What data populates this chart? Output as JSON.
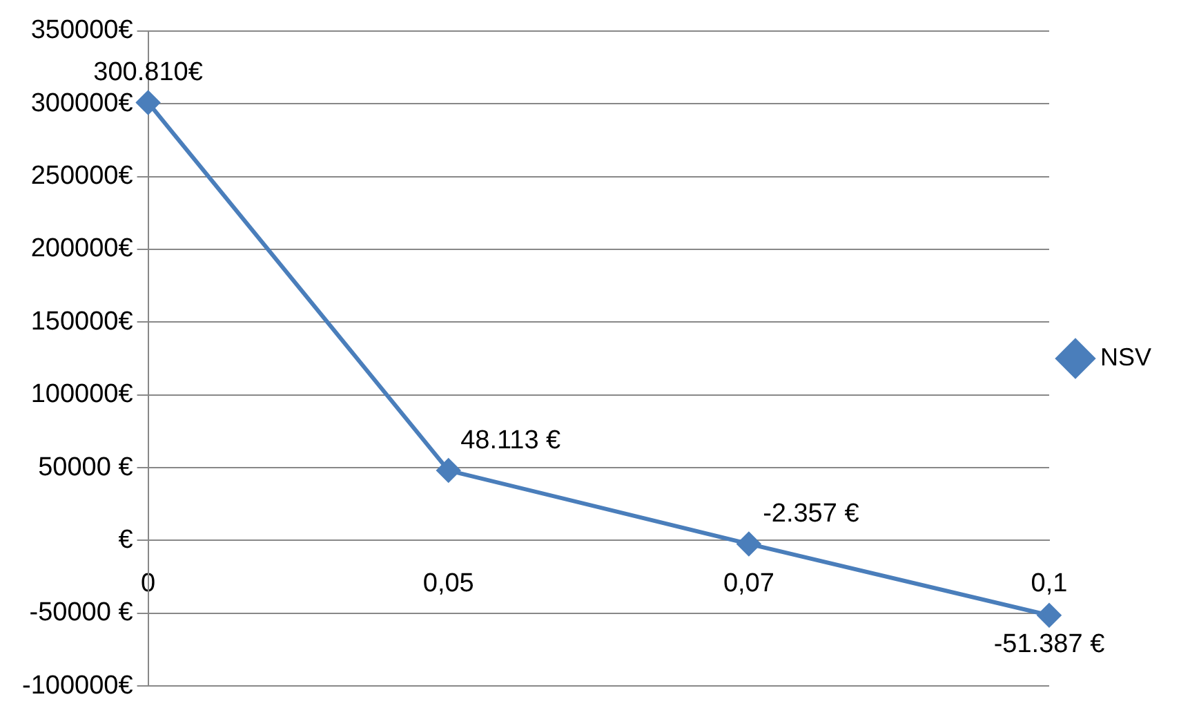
{
  "chart_data": {
    "type": "line",
    "categories": [
      "0",
      "0,05",
      "0,07",
      "0,1"
    ],
    "series": [
      {
        "name": "NSV",
        "color": "#4a7ebb",
        "values": [
          300810,
          48113,
          -2357,
          -51387
        ],
        "value_labels": [
          "300.810€",
          "48.113 €",
          "-2.357 €",
          "-51.387 €"
        ]
      }
    ],
    "ylim": [
      -100000,
      350000
    ],
    "yticks": [
      {
        "value": -100000,
        "label": "-100000€"
      },
      {
        "value": -50000,
        "label": "-50000 €"
      },
      {
        "value": 0,
        "label": "€"
      },
      {
        "value": 50000,
        "label": "50000 €"
      },
      {
        "value": 100000,
        "label": "100000€"
      },
      {
        "value": 150000,
        "label": "150000€"
      },
      {
        "value": 200000,
        "label": "200000€"
      },
      {
        "value": 250000,
        "label": "250000€"
      },
      {
        "value": 300000,
        "label": "300000€"
      },
      {
        "value": 350000,
        "label": "350000€"
      }
    ],
    "grid": "y",
    "legend": "right",
    "marker": "diamond",
    "line_style": "solid"
  }
}
